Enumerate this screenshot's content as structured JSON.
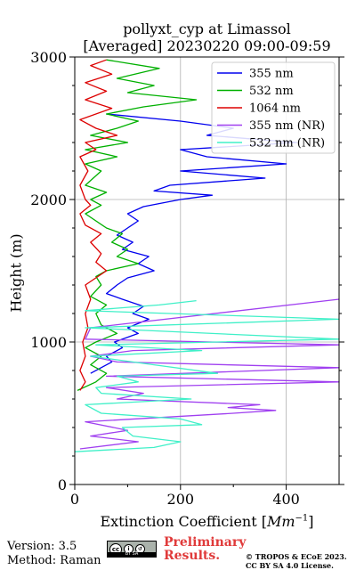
{
  "header": {
    "title_line1": "pollyxt_cyp at Limassol",
    "title_line2": "[Averaged] 20230220 09:00-09:59"
  },
  "axes": {
    "xlabel_text": "Extinction Coefficient [",
    "xlabel_unit": "Mm",
    "xlabel_exp": "−1",
    "xlabel_close": "]",
    "ylabel": "Height (m)"
  },
  "footer": {
    "version": "Version: 3.5",
    "method": "Method: Raman",
    "license_badge": "cc",
    "license_small": "BY SA",
    "prelim_line1": "Preliminary",
    "prelim_line2": "Results.",
    "copyright_line1": "© TROPOS & ECoE 2023.",
    "copyright_line2": "CC BY SA 4.0 License."
  },
  "colors": {
    "355 nm": "#0000ee",
    "532 nm": "#00b000",
    "1064 nm": "#dd0000",
    "355 nm (NR)": "#a040f0",
    "532 nm (NR)": "#40f0c8",
    "prelim": "#e03a3a"
  },
  "chart_data": {
    "type": "line",
    "orientation": "profile (x = extinction, y = height)",
    "title": "pollyxt_cyp at Limassol\n[Averaged] 20230220 09:00-09:59",
    "xlabel": "Extinction Coefficient [Mm^-1]",
    "ylabel": "Height (m)",
    "xlim": [
      0,
      500
    ],
    "ylim": [
      0,
      3000
    ],
    "xticks": [
      0,
      200,
      400
    ],
    "yticks": [
      0,
      1000,
      2000,
      3000
    ],
    "grid": true,
    "legend": "top-right",
    "series": [
      {
        "name": "355 nm",
        "color": "#0000ee",
        "points": [
          [
            30,
            780
          ],
          [
            50,
            820
          ],
          [
            70,
            860
          ],
          [
            60,
            900
          ],
          [
            90,
            960
          ],
          [
            75,
            1000
          ],
          [
            120,
            1060
          ],
          [
            100,
            1100
          ],
          [
            140,
            1160
          ],
          [
            110,
            1200
          ],
          [
            130,
            1250
          ],
          [
            90,
            1300
          ],
          [
            60,
            1340
          ],
          [
            80,
            1400
          ],
          [
            100,
            1450
          ],
          [
            150,
            1500
          ],
          [
            120,
            1550
          ],
          [
            140,
            1600
          ],
          [
            90,
            1650
          ],
          [
            110,
            1700
          ],
          [
            80,
            1750
          ],
          [
            100,
            1800
          ],
          [
            120,
            1850
          ],
          [
            100,
            1900
          ],
          [
            130,
            1950
          ],
          [
            200,
            2000
          ],
          [
            260,
            2030
          ],
          [
            150,
            2060
          ],
          [
            180,
            2100
          ],
          [
            360,
            2150
          ],
          [
            200,
            2200
          ],
          [
            400,
            2250
          ],
          [
            250,
            2300
          ],
          [
            200,
            2350
          ],
          [
            420,
            2400
          ],
          [
            250,
            2450
          ],
          [
            300,
            2500
          ],
          [
            200,
            2550
          ],
          [
            60,
            2600
          ]
        ]
      },
      {
        "name": "532 nm",
        "color": "#00b000",
        "points": [
          [
            5,
            660
          ],
          [
            40,
            720
          ],
          [
            60,
            780
          ],
          [
            30,
            840
          ],
          [
            50,
            900
          ],
          [
            20,
            960
          ],
          [
            40,
            1000
          ],
          [
            80,
            1060
          ],
          [
            50,
            1120
          ],
          [
            40,
            1200
          ],
          [
            60,
            1260
          ],
          [
            30,
            1320
          ],
          [
            50,
            1400
          ],
          [
            40,
            1460
          ],
          [
            60,
            1500
          ],
          [
            120,
            1550
          ],
          [
            80,
            1600
          ],
          [
            100,
            1650
          ],
          [
            70,
            1700
          ],
          [
            90,
            1760
          ],
          [
            60,
            1800
          ],
          [
            20,
            1900
          ],
          [
            50,
            1960
          ],
          [
            30,
            2000
          ],
          [
            60,
            2050
          ],
          [
            20,
            2100
          ],
          [
            50,
            2200
          ],
          [
            20,
            2250
          ],
          [
            80,
            2300
          ],
          [
            20,
            2350
          ],
          [
            100,
            2400
          ],
          [
            30,
            2450
          ],
          [
            80,
            2500
          ],
          [
            120,
            2550
          ],
          [
            60,
            2600
          ],
          [
            130,
            2650
          ],
          [
            230,
            2700
          ],
          [
            100,
            2750
          ],
          [
            150,
            2800
          ],
          [
            80,
            2850
          ],
          [
            160,
            2920
          ],
          [
            60,
            2980
          ]
        ]
      },
      {
        "name": "1064 nm",
        "color": "#dd0000",
        "points": [
          [
            10,
            660
          ],
          [
            20,
            720
          ],
          [
            10,
            800
          ],
          [
            20,
            900
          ],
          [
            15,
            1000
          ],
          [
            25,
            1100
          ],
          [
            20,
            1200
          ],
          [
            30,
            1300
          ],
          [
            20,
            1400
          ],
          [
            60,
            1500
          ],
          [
            40,
            1560
          ],
          [
            50,
            1620
          ],
          [
            30,
            1700
          ],
          [
            50,
            1760
          ],
          [
            20,
            1820
          ],
          [
            10,
            1900
          ],
          [
            30,
            1960
          ],
          [
            20,
            2000
          ],
          [
            10,
            2100
          ],
          [
            25,
            2200
          ],
          [
            10,
            2300
          ],
          [
            40,
            2350
          ],
          [
            20,
            2400
          ],
          [
            80,
            2450
          ],
          [
            40,
            2500
          ],
          [
            10,
            2560
          ],
          [
            70,
            2640
          ],
          [
            20,
            2700
          ],
          [
            60,
            2760
          ],
          [
            20,
            2820
          ],
          [
            70,
            2880
          ],
          [
            30,
            2940
          ],
          [
            60,
            2980
          ]
        ]
      },
      {
        "name": "355 nm (NR)",
        "color": "#a040f0",
        "points": [
          [
            10,
            250
          ],
          [
            120,
            300
          ],
          [
            30,
            340
          ],
          [
            100,
            380
          ],
          [
            20,
            440
          ],
          [
            300,
            500
          ],
          [
            380,
            520
          ],
          [
            290,
            540
          ],
          [
            350,
            560
          ],
          [
            80,
            600
          ],
          [
            130,
            640
          ],
          [
            60,
            680
          ],
          [
            500,
            720
          ],
          [
            60,
            760
          ],
          [
            500,
            820
          ],
          [
            80,
            860
          ],
          [
            30,
            900
          ],
          [
            110,
            940
          ],
          [
            500,
            980
          ],
          [
            20,
            1020
          ],
          [
            30,
            1100
          ],
          [
            500,
            1300
          ]
        ]
      },
      {
        "name": "532 nm (NR)",
        "color": "#40f0c8",
        "points": [
          [
            0,
            230
          ],
          [
            150,
            260
          ],
          [
            200,
            300
          ],
          [
            110,
            340
          ],
          [
            90,
            400
          ],
          [
            240,
            420
          ],
          [
            200,
            460
          ],
          [
            50,
            500
          ],
          [
            20,
            560
          ],
          [
            220,
            600
          ],
          [
            50,
            640
          ],
          [
            40,
            680
          ],
          [
            120,
            720
          ],
          [
            80,
            760
          ],
          [
            270,
            780
          ],
          [
            150,
            840
          ],
          [
            30,
            900
          ],
          [
            240,
            940
          ],
          [
            40,
            980
          ],
          [
            500,
            1020
          ],
          [
            20,
            1100
          ],
          [
            500,
            1160
          ],
          [
            20,
            1220
          ],
          [
            160,
            1260
          ],
          [
            230,
            1290
          ]
        ]
      }
    ]
  }
}
